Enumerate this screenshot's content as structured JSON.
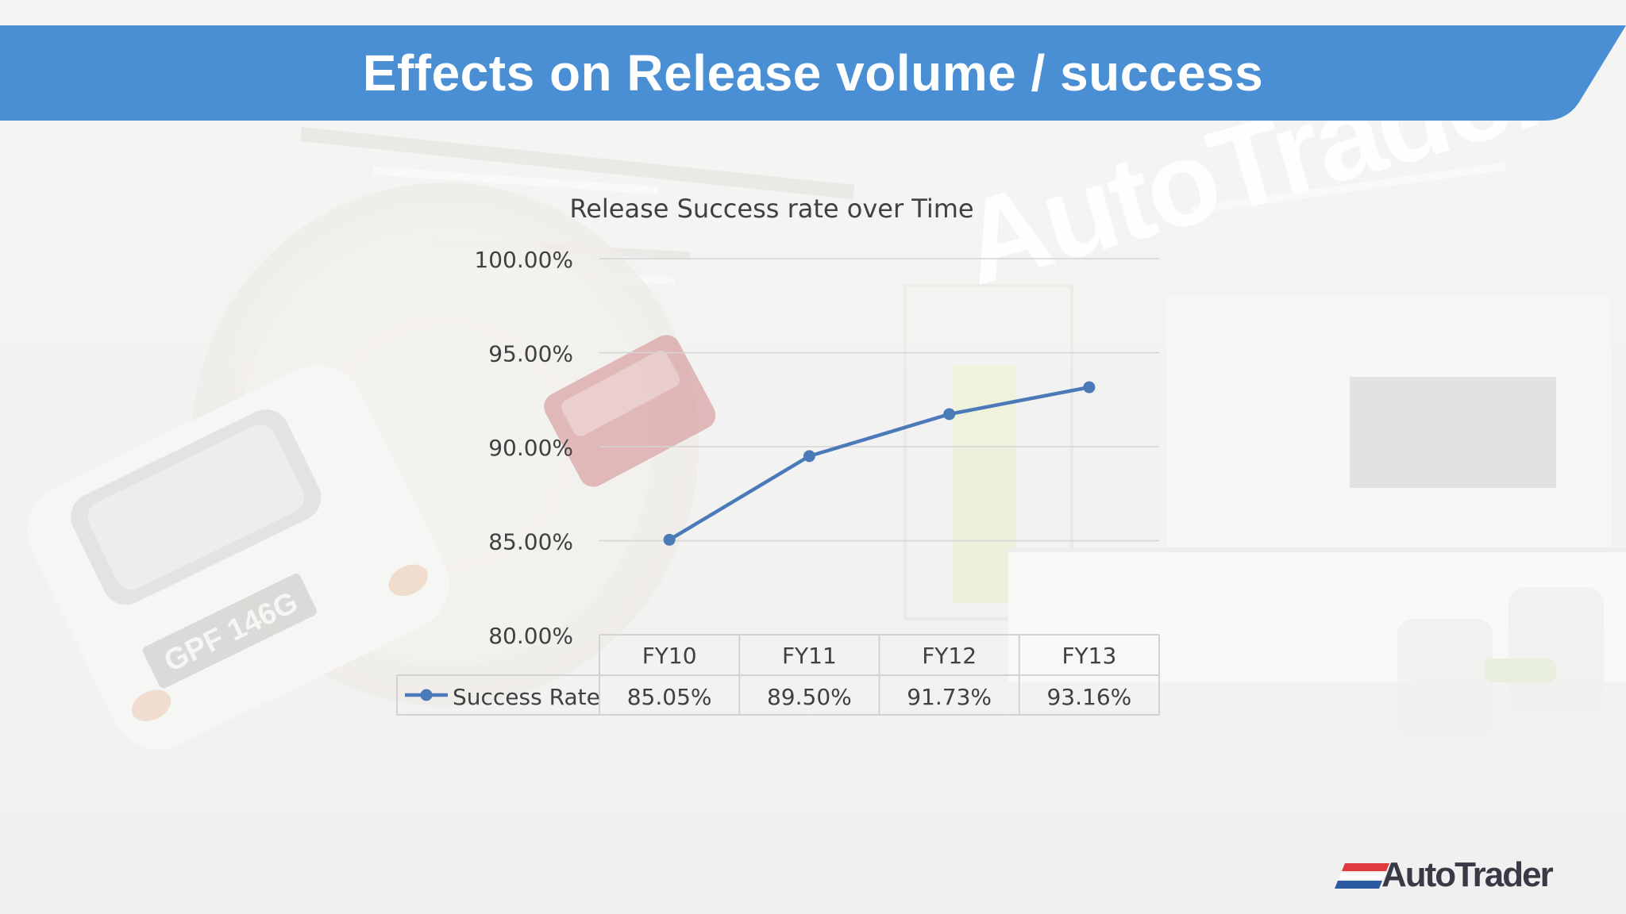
{
  "slide": {
    "title": "Effects on Release volume / success",
    "banner_color": "#4a8fd4",
    "logo_text": "AutoTrader",
    "logo_stripe_colors": [
      "#e03a3e",
      "#ffffff",
      "#2c5aa0"
    ]
  },
  "background": {
    "watermark_text": "AutoTrader",
    "plate_text": "GPF 146G"
  },
  "chart_data": {
    "type": "line",
    "title": "Release Success rate over Time",
    "categories": [
      "FY10",
      "FY11",
      "FY12",
      "FY13"
    ],
    "series": [
      {
        "name": "Success Rate",
        "values": [
          85.05,
          89.5,
          91.73,
          93.16
        ],
        "labels": [
          "85.05%",
          "89.50%",
          "91.73%",
          "93.16%"
        ],
        "color": "#4a7ab8"
      }
    ],
    "ylim": [
      80,
      100
    ],
    "yticks": [
      100,
      95,
      90,
      85,
      80
    ],
    "ytick_labels": [
      "100.00%",
      "95.00%",
      "90.00%",
      "85.00%",
      "80.00%"
    ],
    "grid": true,
    "data_table": true,
    "legend": "in data table"
  }
}
